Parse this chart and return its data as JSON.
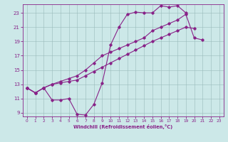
{
  "xlabel": "Windchill (Refroidissement éolien,°C)",
  "bg_color": "#cce8e8",
  "line_color": "#882288",
  "grid_color": "#99bbbb",
  "xlim": [
    -0.5,
    23.5
  ],
  "ylim": [
    8.5,
    24.2
  ],
  "yticks": [
    9,
    11,
    13,
    15,
    17,
    19,
    21,
    23
  ],
  "xticks": [
    0,
    1,
    2,
    3,
    4,
    5,
    6,
    7,
    8,
    9,
    10,
    11,
    12,
    13,
    14,
    15,
    16,
    17,
    18,
    19,
    20,
    21,
    22,
    23
  ],
  "line1_y": [
    12.5,
    11.8,
    12.5,
    10.8,
    10.8,
    11.0,
    8.8,
    8.7,
    10.2,
    13.2,
    18.5,
    21.0,
    22.8,
    23.1,
    23.0,
    23.0,
    24.0,
    23.8,
    24.0,
    23.0,
    null,
    null,
    null,
    null
  ],
  "line2_y": [
    12.5,
    11.8,
    12.5,
    13.0,
    13.2,
    13.4,
    13.6,
    14.2,
    14.8,
    15.4,
    16.0,
    16.6,
    17.2,
    17.8,
    18.4,
    19.0,
    19.5,
    20.0,
    20.5,
    21.0,
    20.8,
    null,
    null,
    null
  ],
  "line3_y": [
    12.5,
    11.8,
    12.5,
    13.0,
    13.4,
    13.8,
    14.2,
    15.0,
    16.0,
    17.0,
    17.5,
    18.0,
    18.5,
    19.0,
    19.5,
    20.5,
    21.0,
    21.5,
    22.0,
    22.8,
    19.5,
    19.2,
    null,
    null
  ]
}
